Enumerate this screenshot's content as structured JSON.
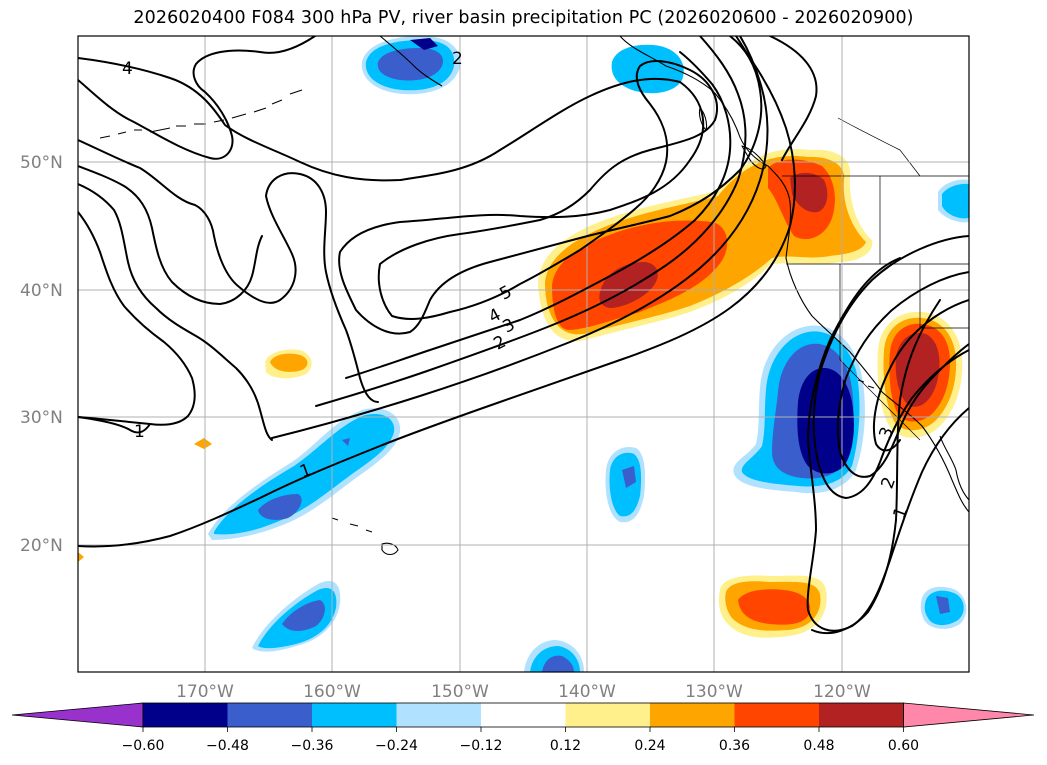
{
  "title": "2026020400 F084 300 hPa PV, river basin precipitation PC (2026020600 - 2026020900)",
  "map": {
    "lat_labels": [
      "50°N",
      "40°N",
      "30°N",
      "20°N"
    ],
    "lon_labels": [
      "170°W",
      "160°W",
      "150°W",
      "140°W",
      "130°W",
      "120°W"
    ],
    "contour_labels": [
      "4",
      "2",
      "5",
      "4",
      "3",
      "2",
      "1",
      "1",
      "3",
      "2",
      "1"
    ]
  },
  "colorbar": {
    "ticks": [
      "−0.60",
      "−0.48",
      "−0.36",
      "−0.24",
      "−0.12",
      "0.12",
      "0.24",
      "0.36",
      "0.48",
      "0.60"
    ],
    "colors": [
      "#9932cc",
      "#00008b",
      "#3a5fcd",
      "#00bfff",
      "#b0e2ff",
      "#ffffff",
      "#fff08c",
      "#ffa500",
      "#ff4500",
      "#b22222",
      "#ff88aa"
    ]
  }
}
